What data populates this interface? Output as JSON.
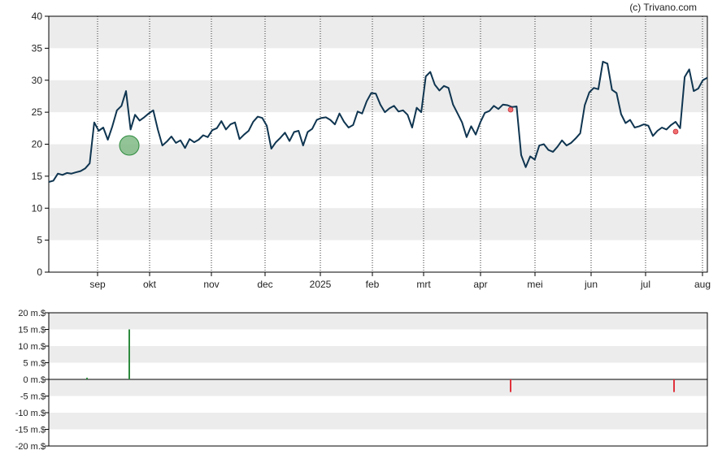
{
  "watermark": "(c) Trivano.com",
  "colors": {
    "price_line": "#0f3550",
    "band": "#ececec",
    "buy": "#2e8b3e",
    "sell": "#e0323c",
    "buy_bubble": "#7fba85",
    "sell_dot": "#f07070",
    "grid": "#333333",
    "frame": "#000000"
  },
  "chart_data": [
    {
      "type": "line",
      "title": "",
      "xlabel": "",
      "ylabel": "",
      "ylim": [
        0,
        40
      ],
      "yticks": [
        "40",
        "35",
        "30",
        "25",
        "20",
        "15",
        "10",
        "5",
        "0"
      ],
      "xticks": [
        "sep",
        "okt",
        "nov",
        "dec",
        "2025",
        "feb",
        "mrt",
        "apr",
        "mei",
        "jun",
        "jul",
        "aug"
      ],
      "grid": "vertical dotted at month starts, alternating horizontal bands",
      "series": [
        {
          "values": [
            14.1,
            14.3,
            15.4,
            15.2,
            15.5,
            15.4,
            15.6,
            15.8,
            16.2,
            17.0,
            23.4,
            22.1,
            22.6,
            20.7,
            22.8,
            25.3,
            26.0,
            28.3,
            22.3,
            24.6,
            23.7,
            24.2,
            24.8,
            25.3,
            22.3,
            19.8,
            20.4,
            21.2,
            20.2,
            20.6,
            19.4,
            20.8,
            20.3,
            20.7,
            21.4,
            21.1,
            22.2,
            22.5,
            23.6,
            22.3,
            23.1,
            23.4,
            20.8,
            21.5,
            22.1,
            23.5,
            24.3,
            24.1,
            22.9,
            19.3,
            20.3,
            21.0,
            21.8,
            20.5,
            21.9,
            22.1,
            19.8,
            21.9,
            22.4,
            23.8,
            24.1,
            24.2,
            23.8,
            23.1,
            24.8,
            23.5,
            22.6,
            23.0,
            25.1,
            24.8,
            26.7,
            28.0,
            27.9,
            26.2,
            25.0,
            25.6,
            26.0,
            25.1,
            25.3,
            24.6,
            22.6,
            25.7,
            25.0,
            30.6,
            31.3,
            29.3,
            28.4,
            29.1,
            28.8,
            26.2,
            24.8,
            23.4,
            21.1,
            22.8,
            21.5,
            23.4,
            24.9,
            25.2,
            26.0,
            25.5,
            26.2,
            26.1,
            25.8,
            25.9,
            18.3,
            16.4,
            18.1,
            17.6,
            19.8,
            20.0,
            19.1,
            18.8,
            19.6,
            20.6,
            19.8,
            20.2,
            20.9,
            21.7,
            26.1,
            28.1,
            28.8,
            28.6,
            32.9,
            32.6,
            28.5,
            28.0,
            24.7,
            23.3,
            23.8,
            22.6,
            22.8,
            23.1,
            22.9,
            21.3,
            22.1,
            22.6,
            22.3,
            23.0,
            23.5,
            22.5,
            30.5,
            31.7,
            28.3,
            28.7,
            30.0,
            30.4
          ]
        }
      ]
    },
    {
      "type": "bar",
      "title": "",
      "xlabel": "",
      "ylabel": "",
      "ylim": [
        -20,
        20
      ],
      "yticks": [
        "20 m.$",
        "15 m.$",
        "10 m.$",
        "5 m.$",
        "0 m.$",
        "-5 m.$",
        "-10 m.$",
        "-15 m.$",
        "-20 m.$"
      ],
      "series": [
        {
          "name": "",
          "values": [
            0.5,
            15.0,
            -3.8,
            -3.8
          ]
        }
      ]
    }
  ]
}
